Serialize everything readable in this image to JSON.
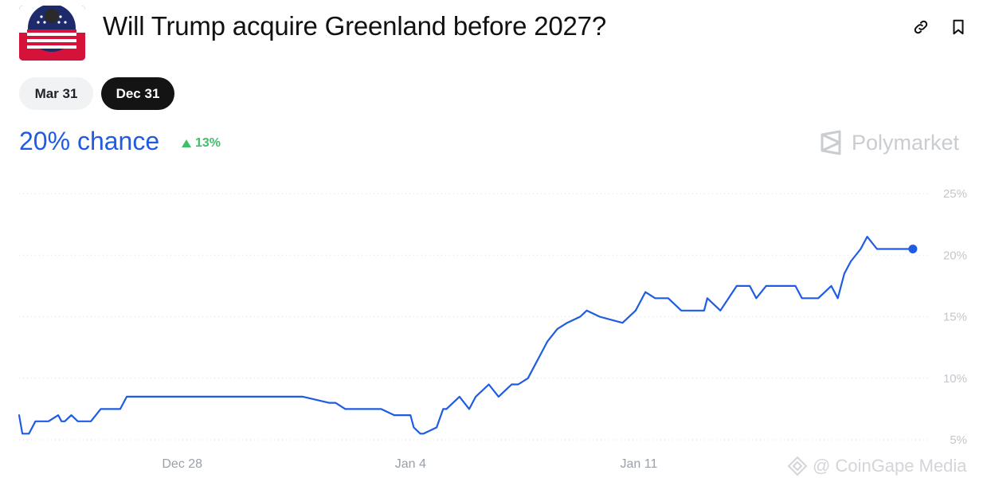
{
  "header": {
    "title": "Will Trump acquire Greenland before 2027?",
    "icons": {
      "logo": "us-flag-icon",
      "link": "link-icon",
      "bookmark": "bookmark-icon"
    }
  },
  "tabs": [
    {
      "label": "Mar 31",
      "selected": false
    },
    {
      "label": "Dec 31",
      "selected": true
    }
  ],
  "summary": {
    "chance_label": "20% chance",
    "change_label": "13%",
    "change_direction": "up",
    "accent_color": "#1f5ce3",
    "positive_color": "#3fbf6a"
  },
  "brand": {
    "name": "Polymarket"
  },
  "watermark": {
    "text": "@ CoinGape Media"
  },
  "chart_data": {
    "type": "line",
    "title": "",
    "xlabel": "",
    "ylabel": "",
    "x_ticks": [
      {
        "label": "Dec 28",
        "day": 7
      },
      {
        "label": "Jan 4",
        "day": 14
      },
      {
        "label": "Jan 11",
        "day": 21
      }
    ],
    "y_ticks": [
      {
        "label": "25%",
        "value": 25
      },
      {
        "label": "20%",
        "value": 20
      },
      {
        "label": "15%",
        "value": 15
      },
      {
        "label": "10%",
        "value": 10
      },
      {
        "label": "5%",
        "value": 5
      }
    ],
    "xlim": [
      2.0,
      29.5
    ],
    "ylim": [
      5,
      25
    ],
    "grid": true,
    "line_color": "#1f5ce3",
    "series": [
      {
        "name": "",
        "x": [
          2.0,
          2.1,
          2.3,
          2.5,
          2.9,
          3.2,
          3.3,
          3.4,
          3.6,
          3.8,
          3.9,
          4.2,
          4.5,
          5.1,
          5.3,
          5.7,
          6.2,
          7.0,
          8.0,
          9.0,
          10.0,
          10.7,
          11.5,
          11.7,
          12.0,
          12.4,
          12.6,
          12.8,
          13.0,
          13.1,
          13.5,
          14.0,
          14.1,
          14.3,
          14.4,
          14.8,
          15.0,
          15.1,
          15.5,
          15.8,
          16.0,
          16.4,
          16.7,
          17.1,
          17.3,
          17.6,
          17.8,
          18.0,
          18.2,
          18.5,
          18.8,
          19.2,
          19.4,
          19.8,
          20.5,
          20.9,
          21.2,
          21.5,
          21.9,
          22.3,
          23.0,
          23.1,
          23.5,
          24.0,
          24.4,
          24.6,
          24.9,
          25.2,
          25.4,
          25.8,
          26.0,
          26.5,
          26.9,
          27.1,
          27.3,
          27.5,
          27.8,
          28.0,
          28.3,
          28.6,
          28.9,
          29.2,
          29.4
        ],
        "y": [
          7.0,
          5.5,
          5.5,
          6.5,
          6.5,
          7.0,
          6.5,
          6.5,
          7.0,
          6.5,
          6.5,
          6.5,
          7.5,
          7.5,
          8.5,
          8.5,
          8.5,
          8.5,
          8.5,
          8.5,
          8.5,
          8.5,
          8.0,
          8.0,
          7.5,
          7.5,
          7.5,
          7.5,
          7.5,
          7.5,
          7.0,
          7.0,
          6.0,
          5.5,
          5.5,
          6.0,
          7.5,
          7.5,
          8.5,
          7.5,
          8.5,
          9.5,
          8.5,
          9.5,
          9.5,
          10.0,
          11.0,
          12.0,
          13.0,
          14.0,
          14.5,
          15.0,
          15.5,
          15.0,
          14.5,
          15.5,
          17.0,
          16.5,
          16.5,
          15.5,
          15.5,
          16.5,
          15.5,
          17.5,
          17.5,
          16.5,
          17.5,
          17.5,
          17.5,
          17.5,
          16.5,
          16.5,
          17.5,
          16.5,
          18.5,
          19.5,
          20.5,
          21.5,
          20.5,
          20.5,
          20.5,
          20.5,
          20.5
        ]
      }
    ],
    "end_point": {
      "x": 29.4,
      "y": 20.5
    }
  }
}
